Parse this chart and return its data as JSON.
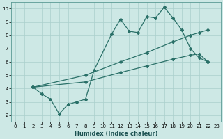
{
  "xlabel": "Humidex (Indice chaleur)",
  "xlim": [
    -0.5,
    23.5
  ],
  "ylim": [
    1.5,
    10.5
  ],
  "xticks": [
    0,
    1,
    2,
    3,
    4,
    5,
    6,
    7,
    8,
    9,
    10,
    11,
    12,
    13,
    14,
    15,
    16,
    17,
    18,
    19,
    20,
    21,
    22,
    23
  ],
  "yticks": [
    2,
    3,
    4,
    5,
    6,
    7,
    8,
    9,
    10
  ],
  "bg_color": "#cde8e5",
  "grid_color": "#aacfcc",
  "line_color": "#2a7068",
  "line1_x": [
    2,
    3,
    4,
    5,
    6,
    7,
    8,
    9,
    11,
    12,
    13,
    14,
    15,
    16,
    17,
    18,
    19,
    20,
    21,
    22
  ],
  "line1_y": [
    4.1,
    3.6,
    3.2,
    2.1,
    2.8,
    3.0,
    3.2,
    5.4,
    8.1,
    9.2,
    8.3,
    8.2,
    9.4,
    9.3,
    10.1,
    9.3,
    8.4,
    7.0,
    6.3,
    6.0
  ],
  "line2_x": [
    2,
    8,
    12,
    15,
    18,
    20,
    21,
    22
  ],
  "line2_y": [
    4.1,
    5.0,
    6.0,
    6.7,
    7.5,
    8.0,
    8.2,
    8.4
  ],
  "line3_x": [
    2,
    8,
    12,
    15,
    18,
    20,
    21,
    22
  ],
  "line3_y": [
    4.1,
    4.5,
    5.2,
    5.7,
    6.2,
    6.5,
    6.6,
    6.0
  ],
  "xlabel_fontsize": 6,
  "tick_fontsize": 5
}
